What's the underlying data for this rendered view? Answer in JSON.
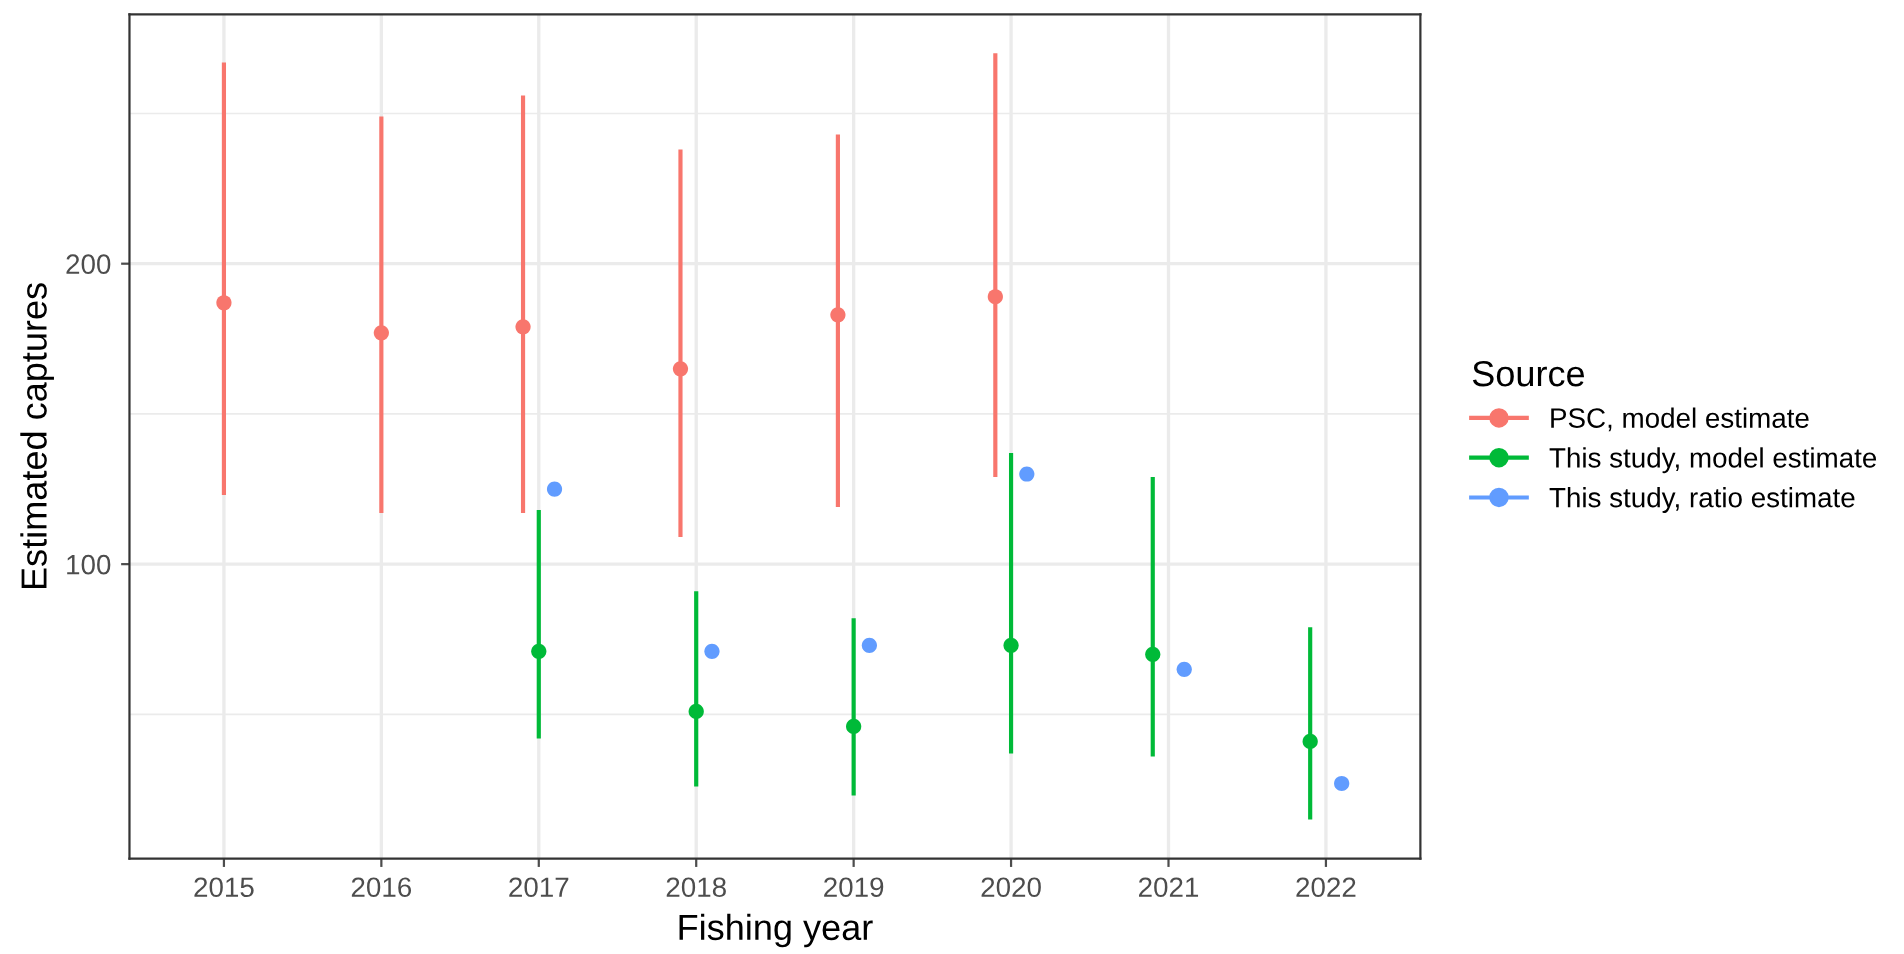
{
  "chart_data": {
    "type": "scatter",
    "xlabel": "Fishing year",
    "ylabel": "Estimated captures",
    "legend_title": "Source",
    "legend": "right",
    "categories": [
      "2015",
      "2016",
      "2017",
      "2018",
      "2019",
      "2020",
      "2021",
      "2022"
    ],
    "ylim": [
      2,
      283
    ],
    "yticks": [
      {
        "value": 50,
        "label": null
      },
      100,
      {
        "value": 150,
        "label": null
      },
      200,
      {
        "value": 250,
        "label": null
      }
    ],
    "grid": true,
    "marker": "circle",
    "series": [
      {
        "name": "PSC, model estimate",
        "color": "#f8766d",
        "values": [
          187,
          177,
          179,
          165,
          183,
          189,
          null,
          null
        ],
        "errors": [
          [
            123,
            267
          ],
          [
            117,
            249
          ],
          [
            117,
            256
          ],
          [
            109,
            238
          ],
          [
            119,
            243
          ],
          [
            129,
            270
          ],
          null,
          null
        ]
      },
      {
        "name": "This study, model estimate",
        "color": "#00ba38",
        "values": [
          null,
          null,
          71,
          51,
          46,
          73,
          70,
          41
        ],
        "errors": [
          null,
          null,
          [
            42,
            118
          ],
          [
            26,
            91
          ],
          [
            23,
            82
          ],
          [
            37,
            137
          ],
          [
            36,
            129
          ],
          [
            15,
            79
          ]
        ]
      },
      {
        "name": "This study, ratio estimate",
        "color": "#619cff",
        "values": [
          null,
          null,
          125,
          71,
          73,
          130,
          65,
          27
        ]
      }
    ]
  }
}
